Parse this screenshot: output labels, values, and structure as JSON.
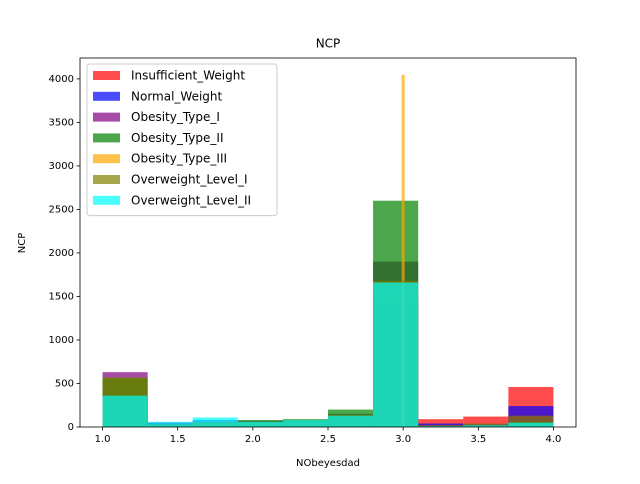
{
  "chart_data": {
    "type": "histogram",
    "title": "NCP",
    "xlabel": "NObeyesdad",
    "ylabel": "NCP",
    "legend": "upper left",
    "alpha": 0.7,
    "xlim": [
      0.85,
      4.15
    ],
    "ylim": [
      0,
      4240
    ],
    "xticks": [
      {
        "value": 1.0,
        "label": "1.0"
      },
      {
        "value": 1.5,
        "label": "1.5"
      },
      {
        "value": 2.0,
        "label": "2.0"
      },
      {
        "value": 2.5,
        "label": "2.5"
      },
      {
        "value": 3.0,
        "label": "3.0"
      },
      {
        "value": 3.5,
        "label": "3.5"
      },
      {
        "value": 4.0,
        "label": "4.0"
      }
    ],
    "yticks": [
      0,
      500,
      1000,
      1500,
      2000,
      2500,
      3000,
      3500,
      4000
    ],
    "series": [
      {
        "name": "Insufficient_Weight",
        "color": "#ff0000",
        "bins": [
          1.0,
          1.3,
          1.6,
          1.9,
          2.2,
          2.5,
          2.8,
          3.1,
          3.4,
          3.7,
          4.0
        ],
        "values": [
          350,
          50,
          60,
          60,
          80,
          130,
          1500,
          90,
          120,
          460
        ]
      },
      {
        "name": "Normal_Weight",
        "color": "#0000ff",
        "bins": [
          1.0,
          1.3,
          1.6,
          1.9,
          2.2,
          2.5,
          2.8,
          3.1,
          3.4,
          3.7,
          4.0
        ],
        "values": [
          360,
          50,
          80,
          60,
          80,
          130,
          1470,
          40,
          30,
          240
        ]
      },
      {
        "name": "Obesity_Type_I",
        "color": "#800080",
        "bins": [
          1.0,
          1.3,
          1.6,
          1.9,
          2.2,
          2.5,
          2.8,
          3.1,
          3.4,
          3.7,
          4.0
        ],
        "values": [
          630,
          40,
          60,
          70,
          80,
          150,
          1900,
          20,
          20,
          130
        ]
      },
      {
        "name": "Obesity_Type_II",
        "color": "#008000",
        "bins": [
          1.0,
          1.3,
          1.6,
          1.9,
          2.2,
          2.5,
          2.8,
          3.1,
          3.4,
          3.7,
          4.0
        ],
        "values": [
          560,
          30,
          50,
          80,
          90,
          200,
          2600,
          10,
          10,
          60
        ]
      },
      {
        "name": "Obesity_Type_III",
        "color": "#ffa500",
        "bins": [
          2.99,
          3.01
        ],
        "values": [
          4046
        ]
      },
      {
        "name": "Overweight_Level_I",
        "color": "#808000",
        "bins": [
          1.0,
          1.3,
          1.6,
          1.9,
          2.2,
          2.5,
          2.8,
          3.1,
          3.4,
          3.7,
          4.0
        ],
        "values": [
          570,
          30,
          60,
          60,
          80,
          140,
          1680,
          20,
          40,
          130
        ]
      },
      {
        "name": "Overweight_Level_II",
        "color": "#00ffff",
        "bins": [
          1.0,
          1.3,
          1.6,
          1.9,
          2.2,
          2.5,
          2.8,
          3.1,
          3.4,
          3.7,
          4.0
        ],
        "values": [
          360,
          60,
          110,
          60,
          80,
          130,
          1660,
          10,
          20,
          50
        ]
      }
    ]
  }
}
